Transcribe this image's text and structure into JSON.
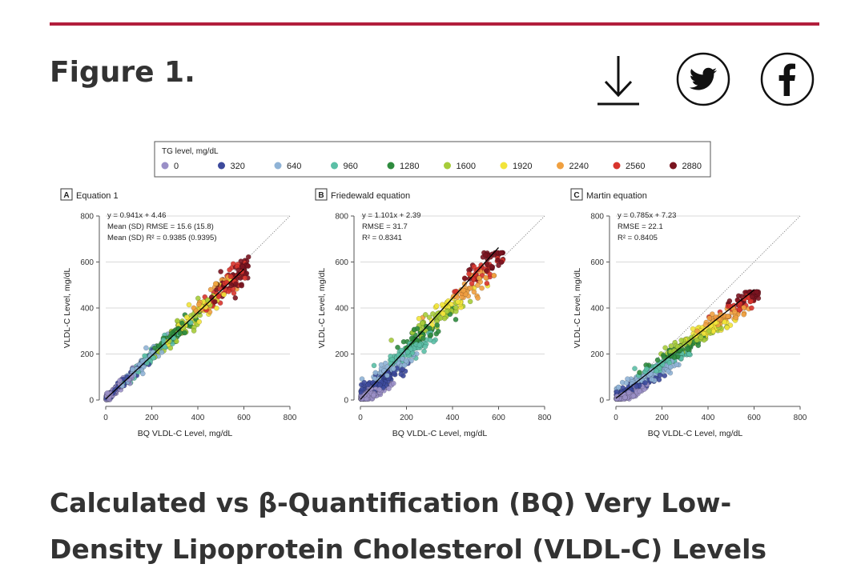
{
  "header": {
    "figure_title": "Figure 1.",
    "accent_color": "#b21e3c",
    "download_icon": "download-icon",
    "twitter_icon": "twitter-bird-icon",
    "facebook_icon": "facebook-f-icon"
  },
  "caption": "Calculated vs β-Quantification (BQ) Very Low-Density Lipoprotein Cholesterol (VLDL-C) Levels",
  "legend": {
    "title": "TG level, mg/dL",
    "items": [
      {
        "label": "0",
        "color": "#9a8fc7"
      },
      {
        "label": "320",
        "color": "#3d4a9c"
      },
      {
        "label": "640",
        "color": "#8fb3d6"
      },
      {
        "label": "960",
        "color": "#5bbfa6"
      },
      {
        "label": "1280",
        "color": "#2e8b3e"
      },
      {
        "label": "1600",
        "color": "#a6cc3a"
      },
      {
        "label": "1920",
        "color": "#f2e43a"
      },
      {
        "label": "2240",
        "color": "#f0a040"
      },
      {
        "label": "2560",
        "color": "#d8342c"
      },
      {
        "label": "2880",
        "color": "#7a1420"
      }
    ]
  },
  "chart_data": [
    {
      "type": "scatter",
      "panel": "A",
      "title": "Equation 1",
      "xlabel": "BQ VLDL-C Level, mg/dL",
      "ylabel": "VLDL-C Level, mg/dL",
      "xlim": [
        0,
        800
      ],
      "ylim": [
        0,
        800
      ],
      "xticks": [
        "0",
        "200",
        "400",
        "600",
        "800"
      ],
      "yticks": [
        "0",
        "200",
        "400",
        "600",
        "800"
      ],
      "annotations": [
        "y = 0.941x + 4.46",
        "Mean (SD) RMSE = 15.6 (15.8)",
        "Mean (SD) R² = 0.9385 (0.9395)"
      ],
      "fit_line": {
        "slope": 0.941,
        "intercept": 4.46,
        "x_range": [
          0,
          600
        ]
      },
      "identity_line": true
    },
    {
      "type": "scatter",
      "panel": "B",
      "title": "Friedewald equation",
      "xlabel": "BQ VLDL-C Level, mg/dL",
      "ylabel": "VLDL-C Level, mg/dL",
      "xlim": [
        0,
        800
      ],
      "ylim": [
        0,
        800
      ],
      "xticks": [
        "0",
        "200",
        "400",
        "600",
        "800"
      ],
      "yticks": [
        "0",
        "200",
        "400",
        "600",
        "800"
      ],
      "annotations": [
        "y = 1.101x + 2.39",
        "RMSE = 31.7",
        "R² = 0.8341"
      ],
      "fit_line": {
        "slope": 1.101,
        "intercept": 2.39,
        "x_range": [
          0,
          600
        ]
      },
      "identity_line": true
    },
    {
      "type": "scatter",
      "panel": "C",
      "title": "Martin equation",
      "xlabel": "BQ VLDL-C Level, mg/dL",
      "ylabel": "VLDL-C Level, mg/dL",
      "xlim": [
        0,
        800
      ],
      "ylim": [
        0,
        800
      ],
      "xticks": [
        "0",
        "200",
        "400",
        "600",
        "800"
      ],
      "yticks": [
        "0",
        "200",
        "400",
        "600",
        "800"
      ],
      "annotations": [
        "y = 0.785x + 7.23",
        "RMSE = 22.1",
        "R² = 0.8405"
      ],
      "fit_line": {
        "slope": 0.785,
        "intercept": 7.23,
        "x_range": [
          0,
          600
        ]
      },
      "identity_line": true
    }
  ]
}
